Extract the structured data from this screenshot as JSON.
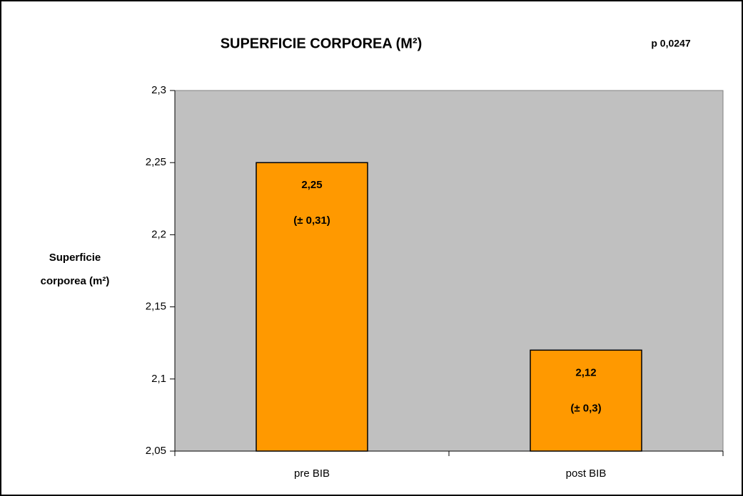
{
  "chart_data": {
    "type": "bar",
    "title": "SUPERFICIE CORPOREA (M²)",
    "annotation": "p 0,0247",
    "y_label": [
      "Superficie",
      "corporea (m²)"
    ],
    "categories": [
      "pre BIB",
      "post BIB"
    ],
    "values": [
      2.25,
      2.12
    ],
    "value_labels": [
      "2,25",
      "2,12"
    ],
    "error_labels": [
      "(± 0,31)",
      "(± 0,3)"
    ],
    "color": "#ff9900",
    "background": "#c0c0c0",
    "ylim": [
      2.05,
      2.3
    ],
    "yticks": [
      {
        "value": 2.05,
        "label": "2,05"
      },
      {
        "value": 2.1,
        "label": "2,1"
      },
      {
        "value": 2.15,
        "label": "2,15"
      },
      {
        "value": 2.2,
        "label": "2,2"
      },
      {
        "value": 2.25,
        "label": "2,25"
      },
      {
        "value": 2.3,
        "label": "2,3"
      }
    ],
    "grid": false
  }
}
